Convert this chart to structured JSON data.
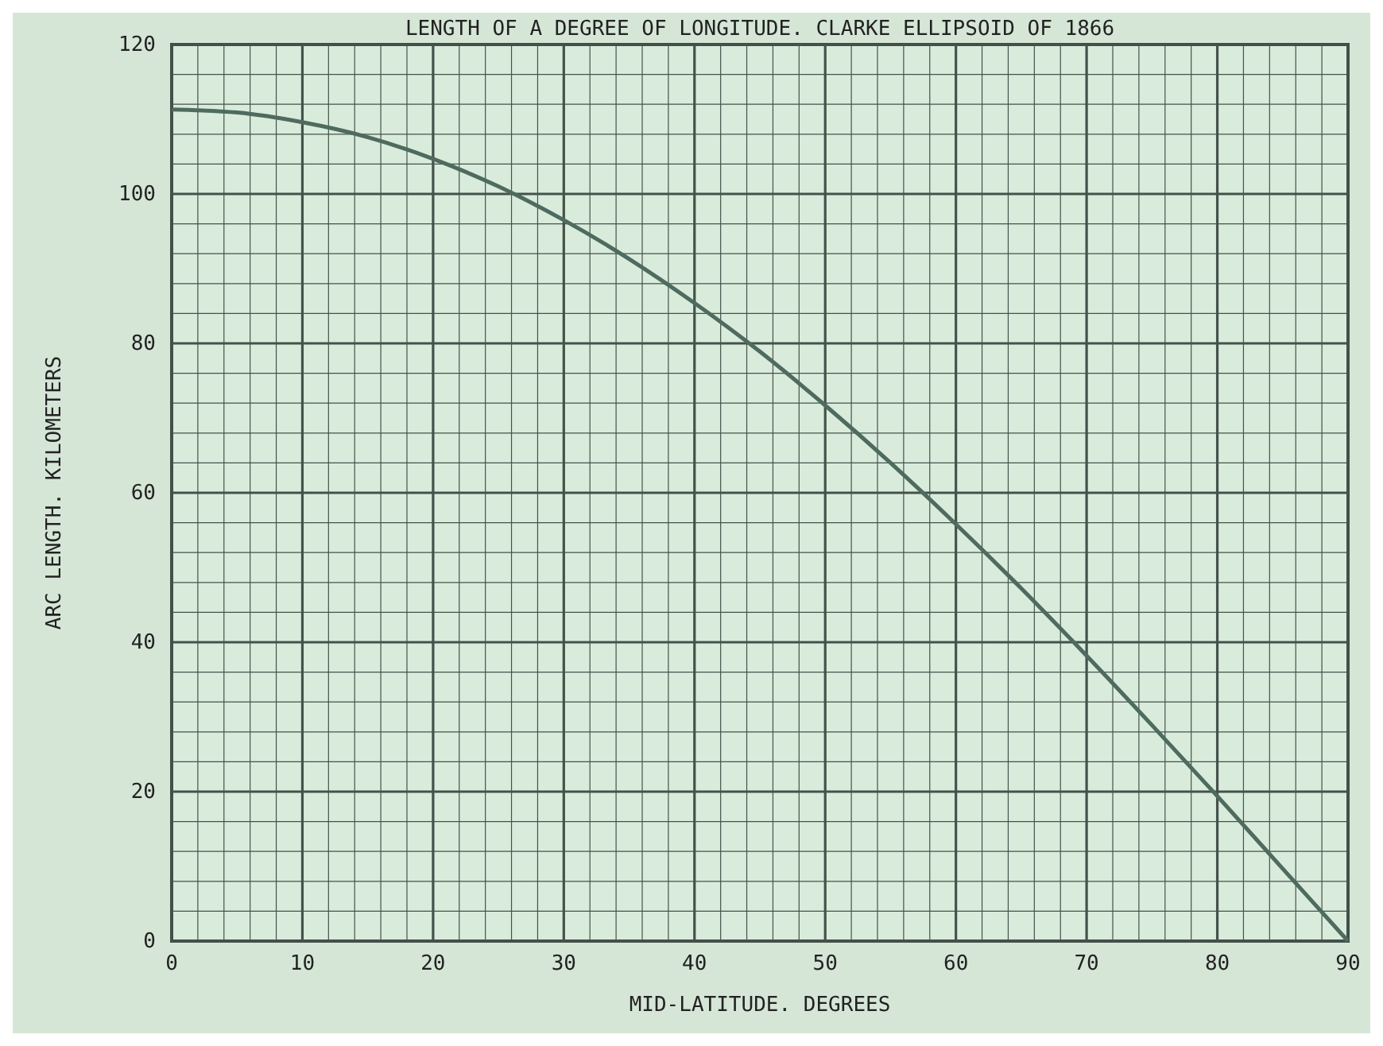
{
  "chart_data": {
    "type": "line",
    "title": "LENGTH OF A DEGREE OF LONGITUDE. CLARKE ELLIPSOID OF 1866",
    "xlabel": "MID-LATITUDE. DEGREES",
    "ylabel": "ARC LENGTH. KILOMETERS",
    "x": [
      0,
      5,
      10,
      15,
      20,
      25,
      30,
      35,
      40,
      45,
      50,
      55,
      60,
      65,
      70,
      75,
      80,
      85,
      90
    ],
    "series": [
      {
        "color": "#4f6a5e",
        "values": [
          111.3,
          110.9,
          109.6,
          107.6,
          104.7,
          101.0,
          96.5,
          91.3,
          85.4,
          78.9,
          71.7,
          64.0,
          55.8,
          47.2,
          38.2,
          28.9,
          19.4,
          9.7,
          0
        ]
      }
    ],
    "xlim": [
      0,
      90
    ],
    "ylim": [
      0,
      120
    ],
    "xticks": [
      0,
      {
        "value": 2,
        "label": null
      },
      {
        "value": 4,
        "label": null
      },
      {
        "value": 6,
        "label": null
      },
      {
        "value": 8,
        "label": null
      },
      10,
      {
        "value": 12,
        "label": null
      },
      {
        "value": 14,
        "label": null
      },
      {
        "value": 16,
        "label": null
      },
      {
        "value": 18,
        "label": null
      },
      20,
      {
        "value": 22,
        "label": null
      },
      {
        "value": 24,
        "label": null
      },
      {
        "value": 26,
        "label": null
      },
      {
        "value": 28,
        "label": null
      },
      30,
      {
        "value": 32,
        "label": null
      },
      {
        "value": 34,
        "label": null
      },
      {
        "value": 36,
        "label": null
      },
      {
        "value": 38,
        "label": null
      },
      40,
      {
        "value": 42,
        "label": null
      },
      {
        "value": 44,
        "label": null
      },
      {
        "value": 46,
        "label": null
      },
      {
        "value": 48,
        "label": null
      },
      50,
      {
        "value": 52,
        "label": null
      },
      {
        "value": 54,
        "label": null
      },
      {
        "value": 56,
        "label": null
      },
      {
        "value": 58,
        "label": null
      },
      60,
      {
        "value": 62,
        "label": null
      },
      {
        "value": 64,
        "label": null
      },
      {
        "value": 66,
        "label": null
      },
      {
        "value": 68,
        "label": null
      },
      70,
      {
        "value": 72,
        "label": null
      },
      {
        "value": 74,
        "label": null
      },
      {
        "value": 76,
        "label": null
      },
      {
        "value": 78,
        "label": null
      },
      80,
      {
        "value": 82,
        "label": null
      },
      {
        "value": 84,
        "label": null
      },
      {
        "value": 86,
        "label": null
      },
      {
        "value": 88,
        "label": null
      },
      90
    ],
    "yticks": [
      0,
      {
        "value": 4,
        "label": null
      },
      {
        "value": 8,
        "label": null
      },
      {
        "value": 12,
        "label": null
      },
      {
        "value": 16,
        "label": null
      },
      20,
      {
        "value": 24,
        "label": null
      },
      {
        "value": 28,
        "label": null
      },
      {
        "value": 32,
        "label": null
      },
      {
        "value": 36,
        "label": null
      },
      40,
      {
        "value": 44,
        "label": null
      },
      {
        "value": 48,
        "label": null
      },
      {
        "value": 52,
        "label": null
      },
      {
        "value": 56,
        "label": null
      },
      60,
      {
        "value": 64,
        "label": null
      },
      {
        "value": 68,
        "label": null
      },
      {
        "value": 72,
        "label": null
      },
      {
        "value": 76,
        "label": null
      },
      80,
      {
        "value": 84,
        "label": null
      },
      {
        "value": 88,
        "label": null
      },
      {
        "value": 92,
        "label": null
      },
      {
        "value": 96,
        "label": null
      },
      100,
      {
        "value": 104,
        "label": null
      },
      {
        "value": 108,
        "label": null
      },
      {
        "value": 112,
        "label": null
      },
      {
        "value": 116,
        "label": null
      },
      120
    ],
    "grid": true,
    "marker": "none",
    "line_style": "solid"
  }
}
